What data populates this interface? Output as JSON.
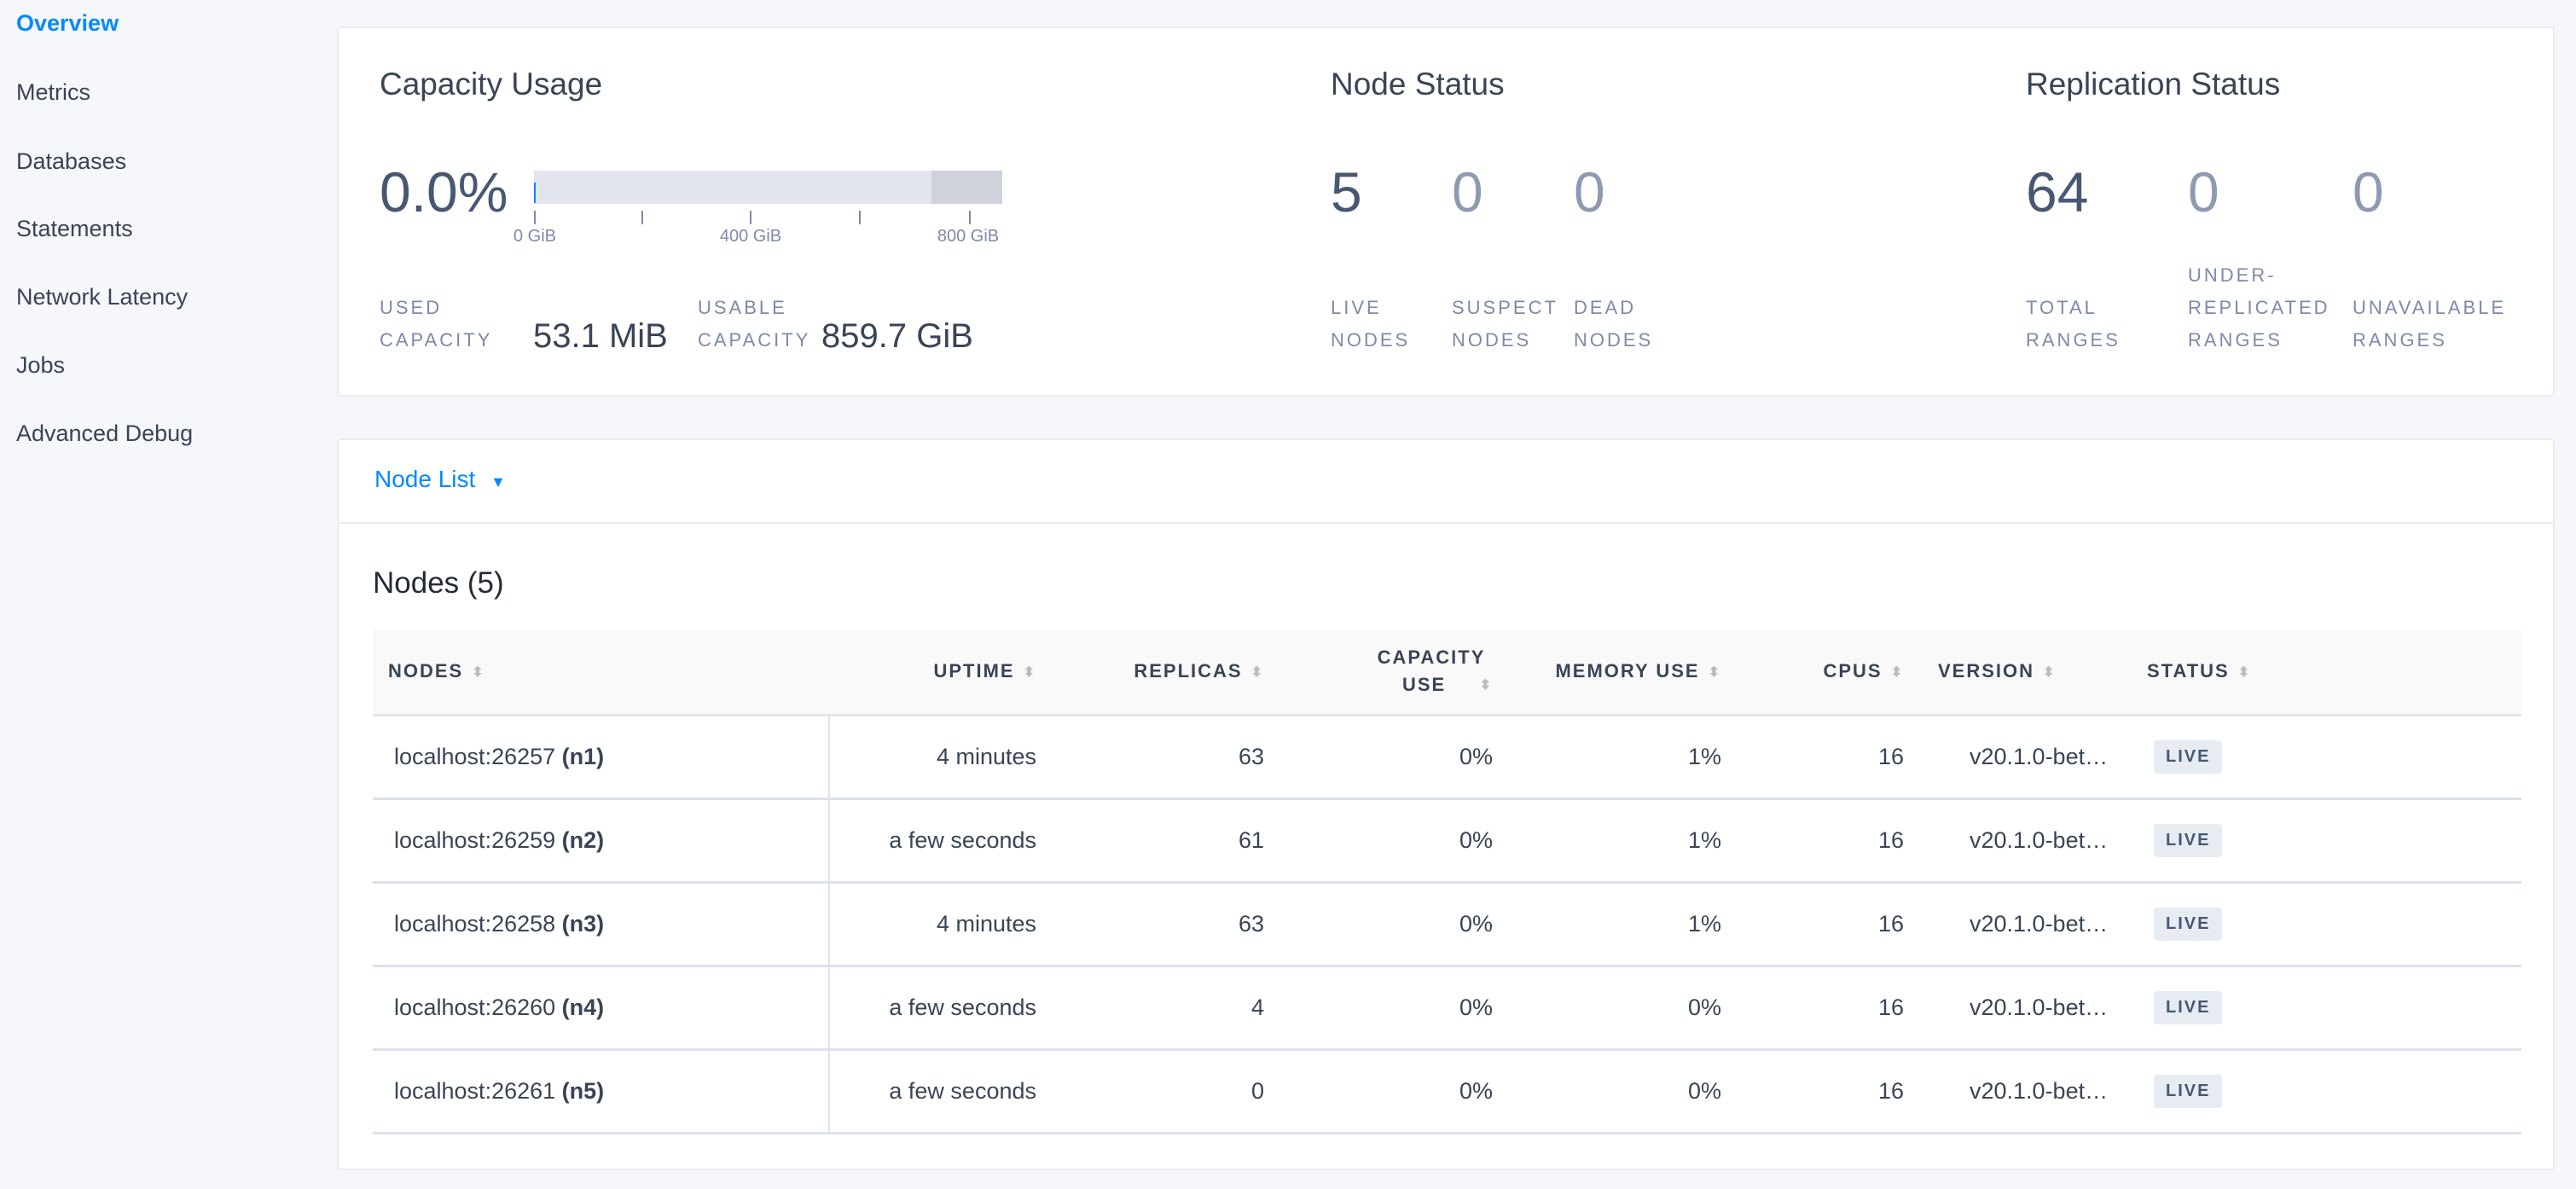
{
  "sidebar": {
    "items": [
      {
        "label": "Overview",
        "active": true
      },
      {
        "label": "Metrics"
      },
      {
        "label": "Databases"
      },
      {
        "label": "Statements"
      },
      {
        "label": "Network Latency"
      },
      {
        "label": "Jobs"
      },
      {
        "label": "Advanced Debug"
      }
    ]
  },
  "capacity": {
    "title": "Capacity Usage",
    "percent": "0.0%",
    "used_fraction": 0.0,
    "ticks": [
      "0 GiB",
      "400 GiB",
      "800 GiB"
    ],
    "used_label_1": "USED",
    "used_label_2": "CAPACITY",
    "used_value": "53.1 MiB",
    "usable_label_1": "USABLE",
    "usable_label_2": "CAPACITY",
    "usable_value": "859.7 GiB"
  },
  "node_status": {
    "title": "Node Status",
    "live": "5",
    "suspect": "0",
    "dead": "0",
    "live_l1": "LIVE",
    "live_l2": "NODES",
    "suspect_l1": "SUSPECT",
    "suspect_l2": "NODES",
    "dead_l1": "DEAD",
    "dead_l2": "NODES"
  },
  "replication": {
    "title": "Replication Status",
    "total": "64",
    "under": "0",
    "unavailable": "0",
    "total_l1": "TOTAL",
    "total_l2": "RANGES",
    "under_l0": "UNDER-",
    "under_l1": "REPLICATED",
    "under_l2": "RANGES",
    "unav_l1": "UNAVAILABLE",
    "unav_l2": "RANGES"
  },
  "node_list": {
    "label": "Node List"
  },
  "nodes": {
    "title": "Nodes (5)",
    "headers": [
      "NODES",
      "UPTIME",
      "REPLICAS",
      "CAPACITY USE",
      "MEMORY USE",
      "CPUS",
      "VERSION",
      "STATUS"
    ],
    "rows": [
      {
        "addr": "localhost:26257",
        "id": "(n1)",
        "uptime": "4 minutes",
        "replicas": "63",
        "capacity": "0%",
        "memory": "1%",
        "cpus": "16",
        "version": "v20.1.0-bet…",
        "status": "LIVE"
      },
      {
        "addr": "localhost:26259",
        "id": "(n2)",
        "uptime": "a few seconds",
        "replicas": "61",
        "capacity": "0%",
        "memory": "1%",
        "cpus": "16",
        "version": "v20.1.0-bet…",
        "status": "LIVE"
      },
      {
        "addr": "localhost:26258",
        "id": "(n3)",
        "uptime": "4 minutes",
        "replicas": "63",
        "capacity": "0%",
        "memory": "1%",
        "cpus": "16",
        "version": "v20.1.0-bet…",
        "status": "LIVE"
      },
      {
        "addr": "localhost:26260",
        "id": "(n4)",
        "uptime": "a few seconds",
        "replicas": "4",
        "capacity": "0%",
        "memory": "0%",
        "cpus": "16",
        "version": "v20.1.0-bet…",
        "status": "LIVE"
      },
      {
        "addr": "localhost:26261",
        "id": "(n5)",
        "uptime": "a few seconds",
        "replicas": "0",
        "capacity": "0%",
        "memory": "0%",
        "cpus": "16",
        "version": "v20.1.0-bet…",
        "status": "LIVE"
      }
    ]
  },
  "colors": {
    "accent": "#0788ff",
    "text": "#394455"
  }
}
